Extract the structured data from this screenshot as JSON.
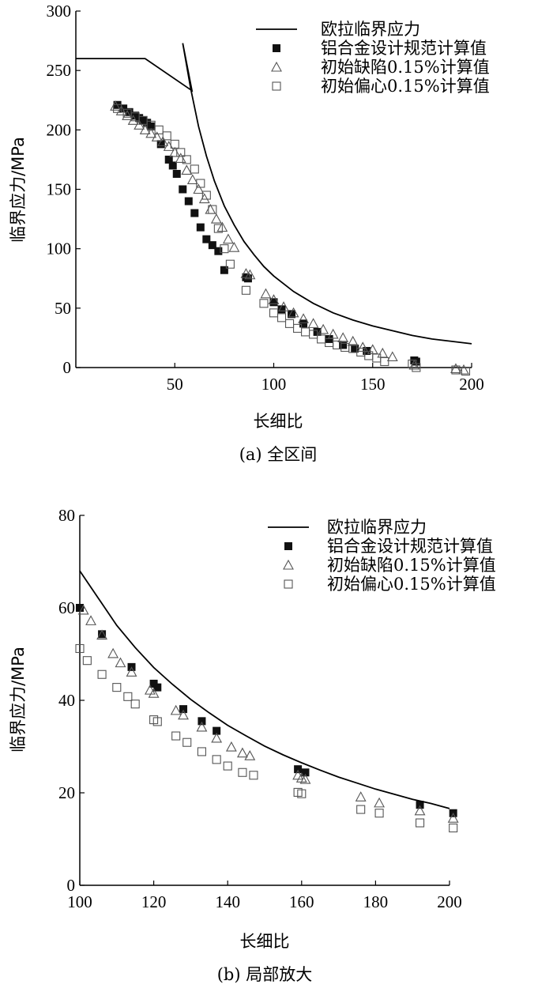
{
  "chart_data": [
    {
      "type": "scatter",
      "caption": "(a) 全区间",
      "xlabel": "长细比",
      "ylabel": "临界应力/MPa",
      "xlim": [
        0,
        200
      ],
      "ylim": [
        0,
        300
      ],
      "xticks": [
        "50",
        "100",
        "150",
        "200"
      ],
      "yticks": [
        "0",
        "50",
        "100",
        "150",
        "200",
        "250",
        "300"
      ],
      "legend_position": "top-right",
      "lines": [
        {
          "name": "欧拉临界应力",
          "x": [
            0,
            35,
            58.7,
            54,
            58,
            62,
            66,
            70,
            75,
            80,
            85,
            90,
            95,
            100,
            110,
            120,
            130,
            140,
            150,
            160,
            170,
            180,
            190,
            200
          ],
          "y": [
            260,
            260,
            233,
            273,
            235,
            203,
            178,
            157,
            136,
            120,
            106,
            95,
            85,
            77,
            64,
            54,
            46,
            40,
            35,
            31,
            27,
            24,
            22,
            20
          ]
        }
      ],
      "series": [
        {
          "name": "铝合金设计规范计算值",
          "marker": "filled-square",
          "x": [
            21,
            24,
            27,
            30,
            32,
            34,
            36,
            38,
            43,
            47,
            49,
            51,
            54,
            57,
            60,
            63,
            66,
            69,
            72,
            75,
            86,
            87,
            100,
            104,
            109,
            115,
            122,
            128,
            135,
            141,
            147,
            171,
            172
          ],
          "y": [
            221,
            218,
            215,
            212,
            210,
            208,
            206,
            203,
            188,
            175,
            170,
            163,
            150,
            140,
            130,
            118,
            108,
            103,
            98,
            82,
            76,
            75,
            55,
            49,
            45,
            37,
            30,
            24,
            19,
            16,
            14,
            6,
            5
          ]
        },
        {
          "name": "初始缺陷0.15%计算值",
          "marker": "open-triangle",
          "x": [
            20,
            23,
            26,
            29,
            32,
            35,
            38,
            41,
            44,
            47,
            50,
            53,
            56,
            59,
            62,
            65,
            68,
            71,
            74,
            77,
            80,
            86,
            88,
            96,
            100,
            105,
            110,
            115,
            120,
            125,
            130,
            135,
            140,
            145,
            150,
            155,
            160,
            171,
            192,
            196
          ],
          "y": [
            220,
            216,
            212,
            208,
            204,
            200,
            197,
            194,
            190,
            186,
            181,
            176,
            166,
            158,
            150,
            142,
            133,
            125,
            118,
            108,
            101,
            79,
            78,
            62,
            57,
            51,
            46,
            41,
            37,
            32,
            28,
            25,
            22,
            17,
            15,
            12,
            9,
            2,
            -1,
            -2
          ]
        },
        {
          "name": "初始偏心0.15%计算值",
          "marker": "open-square",
          "x": [
            21,
            26,
            30,
            34,
            38,
            42,
            46,
            50,
            53,
            56,
            60,
            63,
            66,
            69,
            72,
            75,
            78,
            86,
            95,
            100,
            104,
            108,
            112,
            116,
            120,
            124,
            128,
            132,
            136,
            140,
            144,
            148,
            152,
            156,
            170,
            172,
            192,
            197
          ],
          "y": [
            218,
            214,
            211,
            208,
            204,
            200,
            195,
            188,
            181,
            175,
            167,
            155,
            145,
            133,
            117,
            100,
            87,
            65,
            54,
            46,
            42,
            37,
            33,
            30,
            28,
            24,
            21,
            19,
            17,
            16,
            13,
            10,
            8,
            5,
            3,
            0,
            -2,
            -3
          ]
        }
      ]
    },
    {
      "type": "scatter",
      "caption": "(b) 局部放大",
      "xlabel": "长细比",
      "ylabel": "临界应力/MPa",
      "xlim": [
        100,
        200
      ],
      "ylim": [
        0,
        80
      ],
      "xticks": [
        "100",
        "120",
        "140",
        "160",
        "180",
        "200"
      ],
      "yticks": [
        "0",
        "20",
        "40",
        "60",
        "80"
      ],
      "legend_position": "top-right",
      "lines": [
        {
          "name": "欧拉临界应力",
          "x": [
            100,
            105,
            110,
            115,
            120,
            125,
            130,
            135,
            140,
            145,
            150,
            155,
            160,
            165,
            170,
            175,
            180,
            185,
            190,
            195,
            200
          ],
          "y": [
            68,
            62.1,
            56.2,
            51.4,
            47.1,
            43.5,
            40.2,
            37.3,
            34.6,
            32.3,
            30.1,
            28.2,
            26.5,
            24.9,
            23.4,
            22.1,
            20.8,
            19.7,
            18.6,
            17.7,
            16.6
          ]
        }
      ],
      "series": [
        {
          "name": "铝合金设计规范计算值",
          "marker": "filled-square",
          "x": [
            100,
            106,
            114,
            120,
            121,
            128,
            133,
            137,
            159,
            161,
            192,
            201
          ],
          "y": [
            60,
            54.3,
            47.2,
            43.6,
            42.8,
            38.1,
            35.5,
            33.4,
            25.1,
            24.4,
            17.4,
            15.6
          ]
        },
        {
          "name": "初始缺陷0.15%计算值",
          "marker": "open-triangle",
          "x": [
            101,
            103,
            106,
            109,
            111,
            114,
            119,
            120,
            126,
            128,
            133,
            137,
            141,
            144,
            146,
            159,
            160,
            161,
            176,
            181,
            192,
            201
          ],
          "y": [
            59.5,
            57.2,
            54.1,
            50.1,
            48.1,
            46.1,
            42.2,
            41.5,
            37.8,
            36.8,
            34.2,
            31.8,
            29.9,
            28.6,
            28.0,
            23.8,
            23.2,
            22.9,
            19.1,
            17.8,
            16.1,
            14.5
          ]
        },
        {
          "name": "初始偏心0.15%计算值",
          "marker": "open-square",
          "x": [
            100,
            102,
            106,
            110,
            113,
            115,
            120,
            121,
            126,
            129,
            133,
            137,
            140,
            144,
            147,
            159,
            160,
            176,
            181,
            192,
            201
          ],
          "y": [
            51.2,
            48.6,
            45.6,
            42.8,
            40.8,
            39.2,
            35.8,
            35.4,
            32.3,
            30.9,
            28.9,
            27.2,
            25.8,
            24.4,
            23.8,
            20.1,
            19.8,
            16.4,
            15.6,
            13.5,
            12.4
          ]
        }
      ]
    }
  ]
}
